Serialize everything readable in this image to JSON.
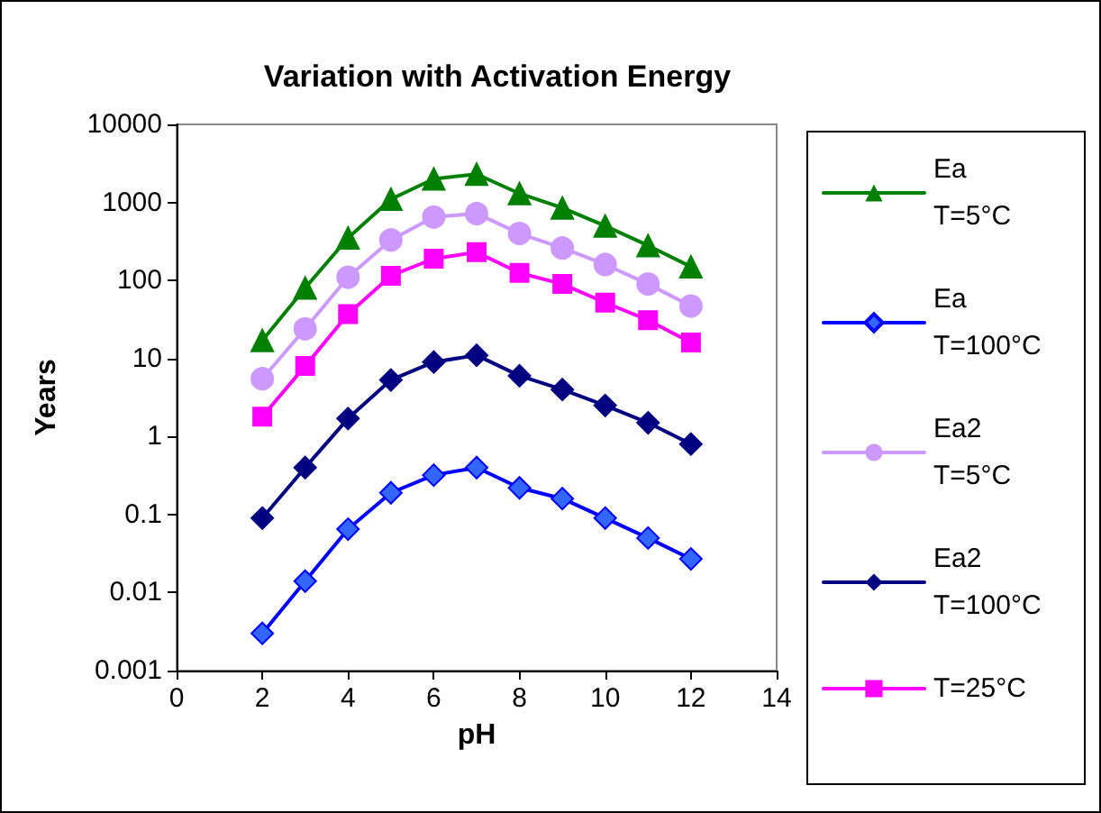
{
  "chart_data": {
    "type": "line",
    "title": "Variation with Activation Energy",
    "xlabel": "pH",
    "ylabel": "Years",
    "x": [
      2,
      3,
      4,
      5,
      6,
      7,
      8,
      9,
      10,
      11,
      12
    ],
    "series": [
      {
        "name": "Ea T=5°C",
        "color": "#008000",
        "marker": "triangle",
        "values": [
          17,
          80,
          350,
          1100,
          2000,
          2300,
          1300,
          850,
          500,
          280,
          150
        ]
      },
      {
        "name": "Ea T=100°C",
        "color": "#0000ff",
        "marker": "diamond",
        "values": [
          0.003,
          0.014,
          0.065,
          0.19,
          0.32,
          0.4,
          0.22,
          0.16,
          0.09,
          0.05,
          0.027
        ]
      },
      {
        "name": "Ea2 T=5°C",
        "color": "#cc99ff",
        "marker": "circle",
        "values": [
          5.5,
          24,
          110,
          330,
          650,
          720,
          400,
          260,
          160,
          90,
          47
        ]
      },
      {
        "name": "Ea2 T=100°C",
        "color": "#000080",
        "marker": "diamond",
        "values": [
          0.09,
          0.4,
          1.7,
          5.3,
          9,
          11,
          6,
          4,
          2.5,
          1.5,
          0.8
        ]
      },
      {
        "name": "T=25°C",
        "color": "#ff00ff",
        "marker": "square",
        "values": [
          1.8,
          8,
          37,
          115,
          190,
          230,
          125,
          90,
          52,
          31,
          16
        ]
      }
    ],
    "log": "y",
    "xlim": [
      0,
      14
    ],
    "xticks": [
      0,
      2,
      4,
      6,
      8,
      10,
      12,
      14
    ],
    "ylim": [
      0.001,
      10000
    ],
    "yticks": [
      0.001,
      0.01,
      0.1,
      1,
      10,
      100,
      1000,
      10000
    ],
    "grid": false,
    "legend": "right"
  }
}
